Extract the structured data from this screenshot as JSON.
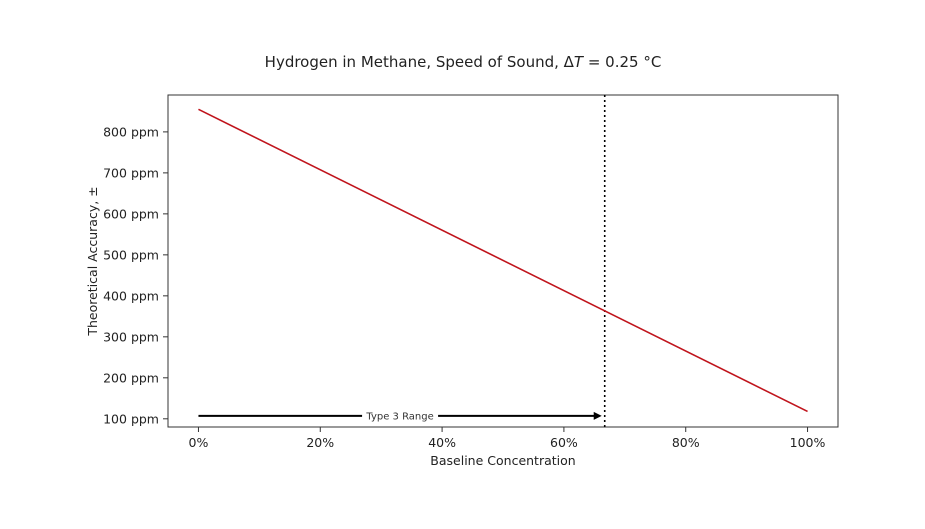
{
  "chart_data": {
    "type": "line",
    "title_main": "Hydrogen in Methane, Speed of Sound, Δ",
    "title_var": "T",
    "title_rest": " = 0.25 °C",
    "xlabel": "Baseline Concentration",
    "ylabel": "Theoretical Accuracy, ±",
    "xlim": [
      -0.05,
      1.05
    ],
    "ylim": [
      80,
      890
    ],
    "x_ticks": [
      {
        "value": 0.0,
        "label": "0%"
      },
      {
        "value": 0.2,
        "label": "20%"
      },
      {
        "value": 0.4,
        "label": "40%"
      },
      {
        "value": 0.6,
        "label": "60%"
      },
      {
        "value": 0.8,
        "label": "80%"
      },
      {
        "value": 1.0,
        "label": "100%"
      }
    ],
    "y_ticks": [
      {
        "value": 100,
        "label": "100 ppm"
      },
      {
        "value": 200,
        "label": "200 ppm"
      },
      {
        "value": 300,
        "label": "300 ppm"
      },
      {
        "value": 400,
        "label": "400 ppm"
      },
      {
        "value": 500,
        "label": "500 ppm"
      },
      {
        "value": 600,
        "label": "600 ppm"
      },
      {
        "value": 700,
        "label": "700 ppm"
      },
      {
        "value": 800,
        "label": "800 ppm"
      }
    ],
    "series": [
      {
        "color": "#c0141c",
        "x": [
          0.0,
          1.0
        ],
        "y": [
          855,
          118
        ]
      }
    ],
    "vline": {
      "x": 0.667,
      "style": "dotted",
      "color": "#000000"
    },
    "annotation": {
      "text": "Type 3 Range",
      "x_start": 0.0,
      "x_end": 0.667,
      "y": 107
    },
    "grid": false
  }
}
